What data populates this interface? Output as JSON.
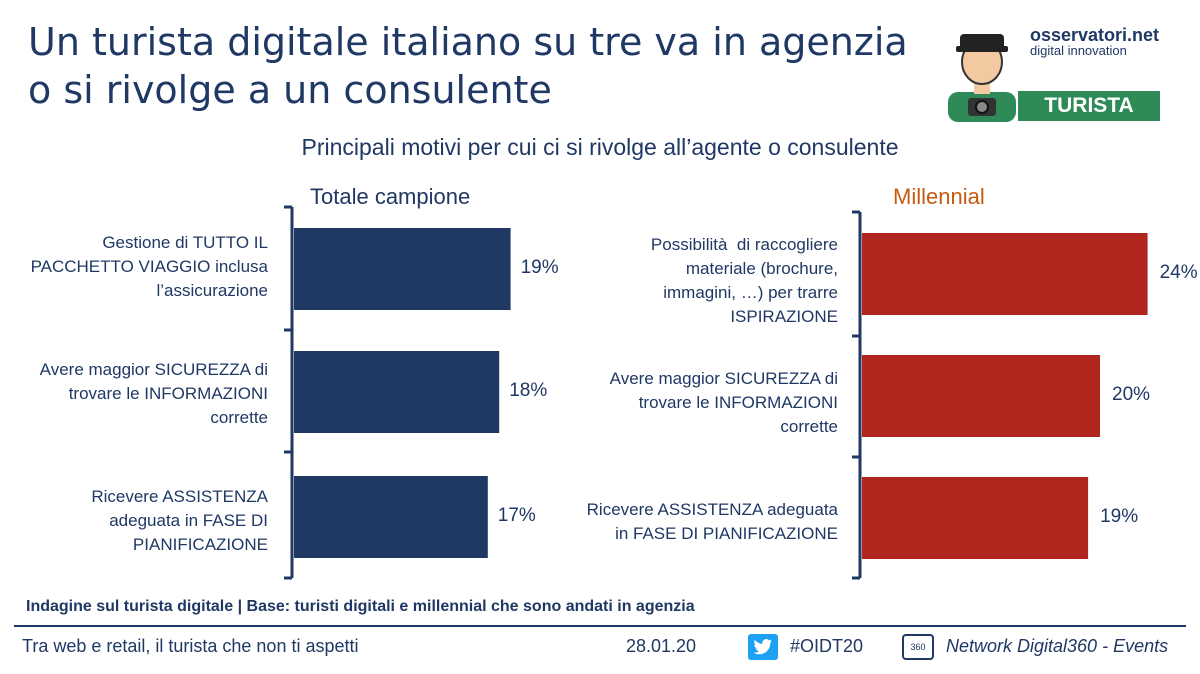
{
  "title_line1": "Un turista digitale italiano su tre va in agenzia",
  "title_line2": "o si rivolge a un consulente",
  "subtitle": "Principali motivi per cui ci si rivolge all’agente o consulente",
  "logo": {
    "line1": "osservatori.net",
    "line2": "digital innovation"
  },
  "badge": "TURISTA",
  "colors": {
    "navy": "#1f3864",
    "red": "#b0251e",
    "orange": "#c55a11",
    "green": "#2e8b57"
  },
  "chart_data": [
    {
      "type": "bar",
      "orientation": "horizontal",
      "title": "Totale campione",
      "categories": [
        "Gestione di TUTTO IL\nPACCHETTO VIAGGIO inclusa\nl’assicurazione",
        "Avere maggior SICUREZZA di\ntrovare le INFORMAZIONI\ncorrette",
        "Ricevere ASSISTENZA\nadeguata in FASE DI\nPIANIFICAZIONE"
      ],
      "values": [
        19,
        18,
        17
      ],
      "value_labels": [
        "19%",
        "18%",
        "17%"
      ],
      "unit": "%",
      "color": "#1f3864"
    },
    {
      "type": "bar",
      "orientation": "horizontal",
      "title": "Millennial",
      "categories": [
        "Possibilità  di raccogliere\nmateriale (brochure,\nimmagini, …) per trarre\nISPIRAZIONE",
        "Avere maggior SICUREZZA di\ntrovare le INFORMAZIONI\ncorrette",
        "Ricevere ASSISTENZA adeguata\nin FASE DI PIANIFICAZIONE"
      ],
      "values": [
        24,
        20,
        19
      ],
      "value_labels": [
        "24%",
        "20%",
        "19%"
      ],
      "unit": "%",
      "color": "#b0251e"
    }
  ],
  "footnote": "Indagine sul turista digitale | Base: turisti digitali  e millennial che sono andati in agenzia",
  "footer": {
    "left": "Tra web e retail, il turista che non ti aspetti",
    "date": "28.01.20",
    "hashtag": "#OIDT20",
    "network": "Network Digital360 - Events",
    "d360_label": "360"
  }
}
